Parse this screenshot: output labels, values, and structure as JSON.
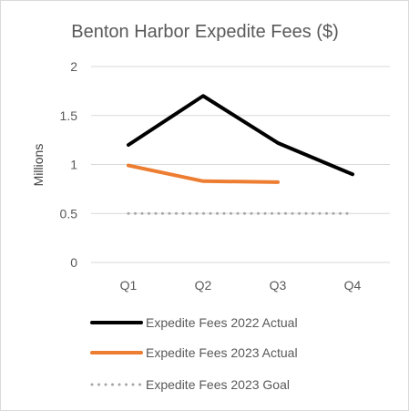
{
  "chart_data": {
    "type": "line",
    "title": "Benton Harbor Expedite Fees ($)",
    "ylabel": "Millions",
    "xlabel": "",
    "categories": [
      "Q1",
      "Q2",
      "Q3",
      "Q4"
    ],
    "ylim": [
      0,
      2
    ],
    "yticks": [
      0,
      0.5,
      1,
      1.5,
      2
    ],
    "grid": true,
    "legend_position": "bottom",
    "series": [
      {
        "name": "Expedite Fees 2022 Actual",
        "values": [
          1.2,
          1.7,
          1.22,
          0.9
        ],
        "color": "#000000",
        "style": "solid"
      },
      {
        "name": "Expedite Fees 2023 Actual",
        "values": [
          0.99,
          0.83,
          0.82,
          null
        ],
        "color": "#ed7d31",
        "style": "solid"
      },
      {
        "name": "Expedite Fees 2023 Goal",
        "values": [
          0.5,
          0.5,
          0.5,
          0.5
        ],
        "color": "#a6a6a6",
        "style": "dotted"
      }
    ]
  }
}
